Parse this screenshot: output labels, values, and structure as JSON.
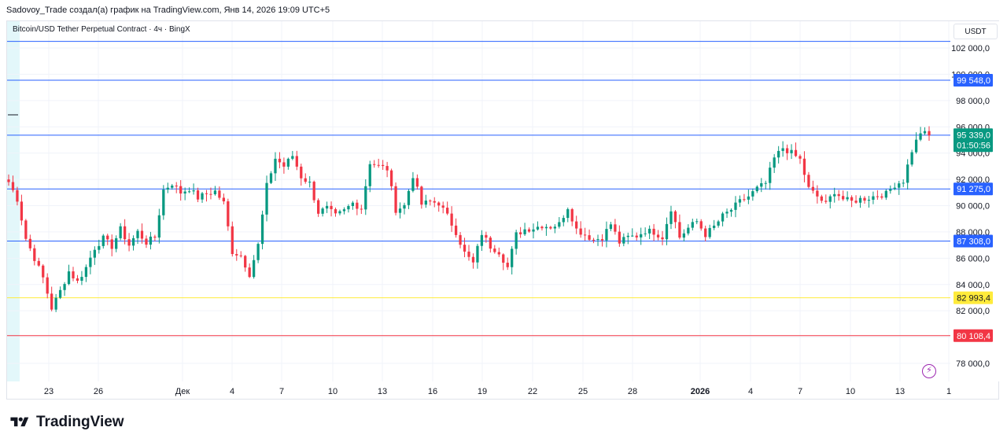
{
  "header": {
    "attribution": "Sadovoy_Trade создал(а) график на TradingView.com, Янв 14, 2026 19:09 UTC+5"
  },
  "chart_data": {
    "type": "candlestick",
    "title": "Bitcoin/USD Tether Perpetual Contract · 4ч · BingX",
    "currency": "USDT",
    "ylim": [
      76500,
      103500
    ],
    "y_ticks": [
      78000,
      80000,
      82000,
      84000,
      86000,
      88000,
      90000,
      92000,
      94000,
      96000,
      98000,
      100000,
      102000
    ],
    "y_tick_labels": [
      "78 000,0",
      "80 000,0",
      "82 000,0",
      "84 000,0",
      "86 000,0",
      "88 000,0",
      "90 000,0",
      "92 000,0",
      "94 000,0",
      "96 000,0",
      "98 000,0",
      "100 000,0",
      "102 000,0"
    ],
    "x_ticks": [
      "23",
      "26",
      "Дек",
      "4",
      "7",
      "10",
      "13",
      "16",
      "19",
      "22",
      "25",
      "28",
      "2026",
      "4",
      "7",
      "10",
      "13",
      "1"
    ],
    "grid": true,
    "horizontal_levels": [
      {
        "value": 102500,
        "label": "",
        "color": "#2962ff"
      },
      {
        "value": 99548.0,
        "label": "99 548,0",
        "color": "#2962ff"
      },
      {
        "value": 95366.0,
        "label": "95 366,0",
        "color": "#2962ff"
      },
      {
        "value": 91275.0,
        "label": "91 275,0",
        "color": "#2962ff"
      },
      {
        "value": 87308.0,
        "label": "87 308,0",
        "color": "#2962ff"
      },
      {
        "value": 82993.4,
        "label": "82 993,4",
        "color": "#ffeb3b"
      },
      {
        "value": 80108.4,
        "label": "80 108,4",
        "color": "#f23645"
      }
    ],
    "last_price": {
      "value": 95339.0,
      "label": "95 339,0",
      "countdown": "01:50:56",
      "color": "#089981"
    },
    "colors": {
      "up": "#089981",
      "down": "#f23645"
    },
    "candles_close_anchors": [
      [
        91800,
        90500,
        87500,
        86000,
        84500,
        82200,
        83500,
        85000,
        84200,
        85300,
        86800,
        87500,
        86900,
        88200,
        87000,
        88000,
        87200,
        87600
      ],
      [
        91200,
        91700,
        91000,
        91300,
        90600,
        90900,
        91100,
        90200,
        86500,
        86200,
        84800,
        87000,
        91500,
        93600,
        93000,
        93800,
        92200,
        91700
      ],
      [
        89500,
        89800,
        89200,
        89600,
        90200,
        89800,
        93300,
        93000,
        92800,
        89700,
        90000,
        92300,
        90100,
        90300,
        90200,
        89200,
        88000,
        86400
      ],
      [
        85600,
        87900,
        86900,
        86500,
        85300,
        87800,
        88200,
        88300,
        88500,
        88400,
        88600,
        89900,
        88200,
        87800,
        87400,
        87600,
        88600,
        87200
      ],
      [
        87600,
        87700,
        88100,
        88000,
        87600,
        89800,
        87600,
        88300,
        88800,
        87800,
        88400,
        89200,
        89700,
        90300,
        90700,
        91300,
        91700,
        93600
      ],
      [
        94400,
        94000,
        93500,
        91300,
        90700,
        90100,
        91100,
        90500,
        90300,
        90500,
        90600,
        90800,
        90900,
        91600,
        91900,
        94200,
        95600,
        95339
      ]
    ]
  }
}
